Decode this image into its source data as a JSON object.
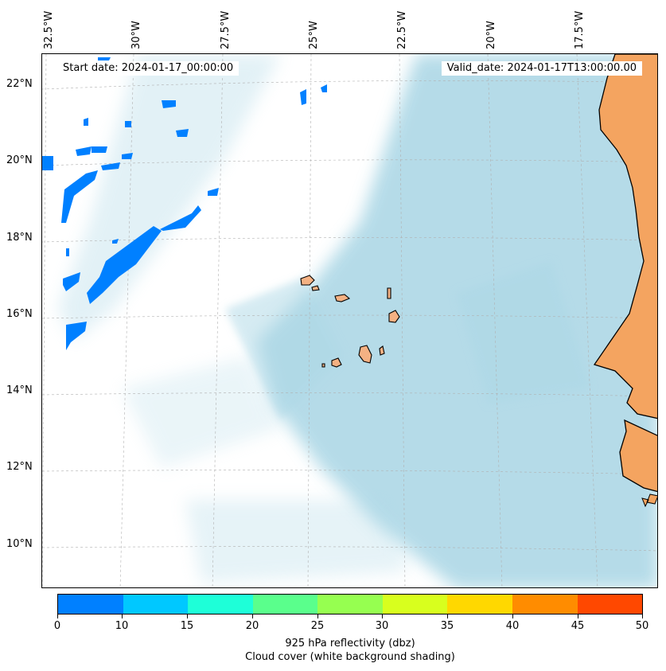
{
  "header": {
    "start_date": "Start date: 2024-01-17_00:00:00",
    "valid_date": "Valid_date: 2024-01-17T13:00:00.00"
  },
  "map": {
    "lon_labels": [
      "32.5°W",
      "30°W",
      "27.5°W",
      "25°W",
      "22.5°W",
      "20°W",
      "17.5°W"
    ],
    "lat_labels": [
      "22°N",
      "20°N",
      "18°N",
      "16°N",
      "14°N",
      "12°N",
      "10°N"
    ],
    "colors": {
      "cloud": "#add8e6",
      "land_cape_verde": "#f4b183",
      "land_africa": "#f4a460",
      "coastline": "#000000",
      "gridline": "#b0b0b0"
    }
  },
  "colorbar": {
    "ticks": [
      "0",
      "10",
      "15",
      "20",
      "25",
      "30",
      "35",
      "40",
      "45",
      "50"
    ],
    "colors": [
      "#0080ff",
      "#00c8ff",
      "#1effd8",
      "#5aff8c",
      "#96ff50",
      "#d8ff1e",
      "#ffd800",
      "#ff8c00",
      "#ff4800"
    ],
    "label": "925 hPa reflectivity (dbz)",
    "sublabel": "Cloud cover (white background shading)"
  }
}
